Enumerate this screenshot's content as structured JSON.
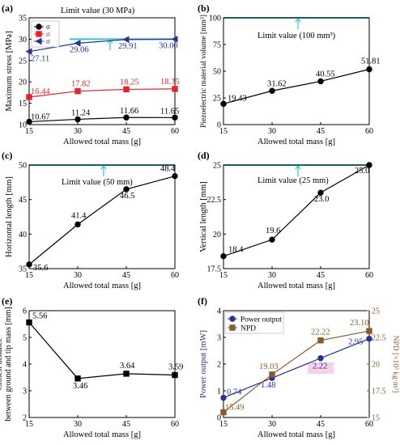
{
  "chart_data": [
    {
      "panel": "(a)",
      "type": "line",
      "xlabel": "Allowed total mass [g]",
      "ylabel": "Maximum stress [MPa]",
      "x": [
        15,
        30,
        45,
        60
      ],
      "xlim": [
        15,
        60
      ],
      "ylim": [
        10,
        35
      ],
      "yticks": [
        10,
        15,
        20,
        25,
        30,
        35
      ],
      "limit": {
        "value": 30,
        "label": "Limit value (30 MPa)"
      },
      "legend": {
        "position": "top-left",
        "entries": [
          "σ",
          "σ",
          "σ"
        ]
      },
      "series": [
        {
          "color": "#000000",
          "marker": "circle",
          "values": [
            10.67,
            11.24,
            11.66,
            11.65
          ],
          "labels": [
            "10.67",
            "11.24",
            "11.66",
            "11.65"
          ]
        },
        {
          "color": "#e8222b",
          "marker": "square",
          "values": [
            16.44,
            17.82,
            18.25,
            18.35
          ],
          "labels": [
            "16.44",
            "17.82",
            "18.25",
            "18.35"
          ]
        },
        {
          "color": "#27309a",
          "marker": "triangle",
          "values": [
            27.11,
            29.06,
            29.91,
            30.0
          ],
          "labels": [
            "27.11",
            "29.06",
            "29.91",
            "30.00"
          ]
        }
      ]
    },
    {
      "panel": "(b)",
      "type": "line",
      "xlabel": "Allowed total mass [g]",
      "ylabel": "Piezoelectric material volume [mm³]",
      "x": [
        15,
        30,
        45,
        60
      ],
      "xlim": [
        15,
        60
      ],
      "ylim": [
        0,
        100
      ],
      "yticks": [
        0,
        25,
        50,
        75,
        100
      ],
      "limit": {
        "value": 100,
        "label": "Limit value (100 mm³)"
      },
      "series": [
        {
          "color": "#000000",
          "marker": "circle",
          "values": [
            19.43,
            31.62,
            40.55,
            51.81
          ],
          "labels": [
            "19.43",
            "31.62",
            "40.55",
            "51.81"
          ]
        }
      ]
    },
    {
      "panel": "(c)",
      "type": "line",
      "xlabel": "Allowed total mass [g]",
      "ylabel": "Horizontal length [mm]",
      "x": [
        15,
        30,
        45,
        60
      ],
      "xlim": [
        15,
        60
      ],
      "ylim": [
        35,
        50
      ],
      "yticks": [
        35,
        40,
        45,
        50
      ],
      "limit": {
        "value": 50,
        "label": "Limit value (50 mm)"
      },
      "series": [
        {
          "color": "#000000",
          "marker": "circle",
          "values": [
            35.6,
            41.4,
            46.5,
            48.4
          ],
          "labels": [
            "35.6",
            "41.4",
            "46.5",
            "48.4"
          ]
        }
      ]
    },
    {
      "panel": "(d)",
      "type": "line",
      "xlabel": "Allowed total mass [g]",
      "ylabel": "Vertical length [mm]",
      "x": [
        15,
        30,
        45,
        60
      ],
      "xlim": [
        15,
        60
      ],
      "ylim": [
        17.5,
        25
      ],
      "yticks": [
        17.5,
        20,
        22.5,
        25
      ],
      "limit": {
        "value": 25,
        "label": "Limit value (25 mm)"
      },
      "series": [
        {
          "color": "#000000",
          "marker": "circle",
          "values": [
            18.4,
            19.6,
            23.0,
            25.0
          ],
          "labels": [
            "18.4",
            "19.6",
            "23.0",
            "25.0"
          ]
        }
      ]
    },
    {
      "panel": "(e)",
      "type": "line",
      "xlabel": "Allowed total mass [g]",
      "ylabel": "Closest distance between ground and tip mass [mm]",
      "x": [
        15,
        30,
        45,
        60
      ],
      "xlim": [
        15,
        60
      ],
      "ylim": [
        2,
        6
      ],
      "yticks": [
        2,
        3,
        4,
        5,
        6
      ],
      "series": [
        {
          "color": "#000000",
          "marker": "square",
          "values": [
            5.56,
            3.46,
            3.64,
            3.59
          ],
          "labels": [
            "5.56",
            "3.46",
            "3.64",
            "3.59"
          ]
        }
      ]
    },
    {
      "panel": "(f)",
      "type": "line",
      "xlabel": "Allowed total mass [g]",
      "ylabel": "Power output [mW]",
      "y2label": "NPD [×10³ kg·m³]",
      "x": [
        15,
        30,
        45,
        60
      ],
      "xlim": [
        15,
        60
      ],
      "ylim": [
        0,
        4
      ],
      "yticks": [
        0,
        1,
        2,
        3,
        4
      ],
      "y2lim": [
        15,
        25
      ],
      "y2ticks": [
        15,
        17.5,
        20,
        22.5,
        25
      ],
      "legend": {
        "position": "top-left",
        "entries": [
          "Power output",
          "NPD"
        ]
      },
      "series": [
        {
          "name": "Power output",
          "axis": "left",
          "color": "#27309a",
          "marker": "circle",
          "values": [
            0.74,
            1.48,
            2.22,
            2.95
          ],
          "labels": [
            "0.74",
            "1.48",
            "2.22",
            "2.95"
          ]
        },
        {
          "name": "NPD",
          "axis": "right",
          "color": "#8b5a2b",
          "marker": "square",
          "values": [
            15.49,
            19.03,
            22.22,
            23.1
          ],
          "labels": [
            "15.49",
            "19.03",
            "22.22",
            "23.10"
          ]
        }
      ]
    }
  ],
  "colors": {
    "limit": "#30c9c9",
    "axis": "#000000",
    "highlight": "#f5c6e0"
  }
}
